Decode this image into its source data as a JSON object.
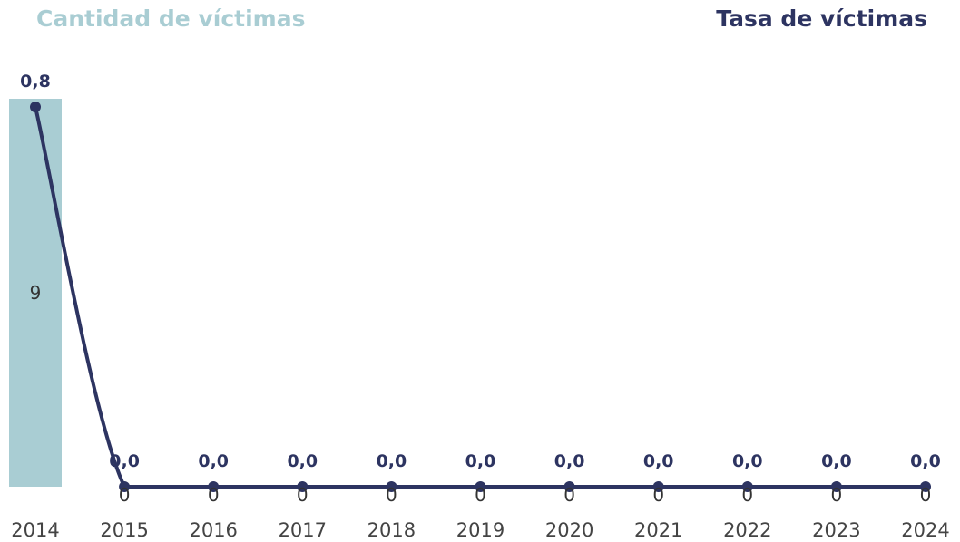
{
  "legend": {
    "bars_label": "Cantidad de víctimas",
    "line_label": "Tasa de víctimas"
  },
  "colors": {
    "bars": "#a9cdd3",
    "line": "#2d3461",
    "bars_legend": "#a9cdd3",
    "line_legend": "#2d3461"
  },
  "chart_data": {
    "type": "bar",
    "categories": [
      "2014",
      "2015",
      "2016",
      "2017",
      "2018",
      "2019",
      "2020",
      "2021",
      "2022",
      "2023",
      "2024"
    ],
    "series": [
      {
        "name": "Cantidad de víctimas",
        "type": "bar",
        "values": [
          9,
          0,
          0,
          0,
          0,
          0,
          0,
          0,
          0,
          0,
          0
        ],
        "labels": [
          "9",
          "0",
          "0",
          "0",
          "0",
          "0",
          "0",
          "0",
          "0",
          "0",
          "0"
        ]
      },
      {
        "name": "Tasa de víctimas",
        "type": "line",
        "values": [
          0.8,
          0.0,
          0.0,
          0.0,
          0.0,
          0.0,
          0.0,
          0.0,
          0.0,
          0.0,
          0.0
        ],
        "labels": [
          "0,8",
          "0,0",
          "0,0",
          "0,0",
          "0,0",
          "0,0",
          "0,0",
          "0,0",
          "0,0",
          "0,0",
          "0,0"
        ]
      }
    ],
    "bar_axis_max": 9,
    "line_axis_max": 0.8,
    "grid": false,
    "legend_position": "top"
  }
}
